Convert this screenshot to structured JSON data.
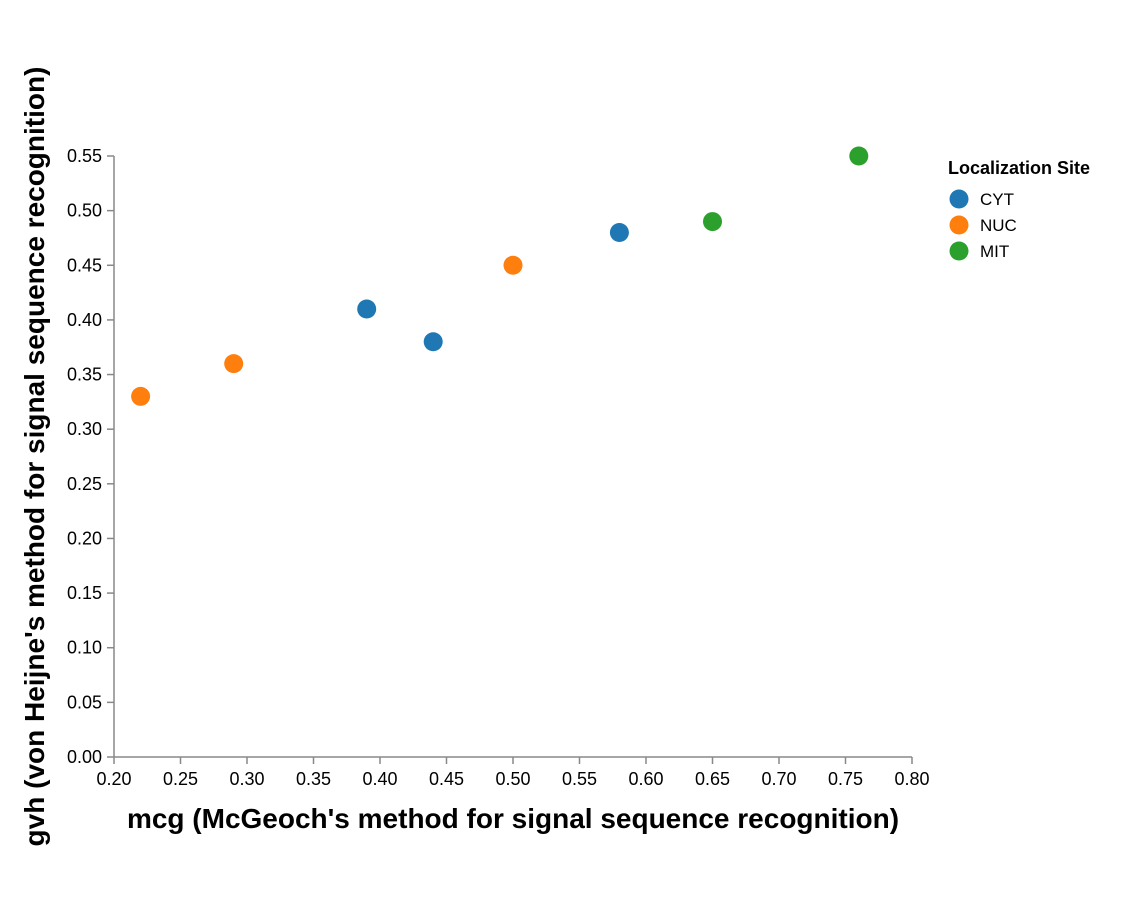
{
  "chart_data": {
    "type": "scatter",
    "xlabel": "mcg (McGeoch's method for signal sequence recognition)",
    "ylabel": "gvh (von Heijne's method for signal sequence recognition)",
    "xlim": [
      0.2,
      0.8
    ],
    "ylim": [
      0.0,
      0.55
    ],
    "x_ticks": [
      "0.20",
      "0.25",
      "0.30",
      "0.35",
      "0.40",
      "0.45",
      "0.50",
      "0.55",
      "0.60",
      "0.65",
      "0.70",
      "0.75",
      "0.80"
    ],
    "y_ticks": [
      "0.00",
      "0.05",
      "0.10",
      "0.15",
      "0.20",
      "0.25",
      "0.30",
      "0.35",
      "0.40",
      "0.45",
      "0.50",
      "0.55"
    ],
    "grid": false,
    "legend": {
      "title": "Localization Site",
      "placement": "top-right",
      "entries": [
        {
          "label": "CYT",
          "color": "#1f77b4"
        },
        {
          "label": "NUC",
          "color": "#ff7f0e"
        },
        {
          "label": "MIT",
          "color": "#2ca02c"
        }
      ]
    },
    "series": [
      {
        "name": "CYT",
        "color": "#1f77b4",
        "points": [
          [
            0.58,
            0.48
          ],
          [
            0.39,
            0.41
          ],
          [
            0.44,
            0.38
          ]
        ]
      },
      {
        "name": "NUC",
        "color": "#ff7f0e",
        "points": [
          [
            0.5,
            0.45
          ],
          [
            0.29,
            0.36
          ],
          [
            0.22,
            0.33
          ]
        ]
      },
      {
        "name": "MIT",
        "color": "#2ca02c",
        "points": [
          [
            0.76,
            0.55
          ],
          [
            0.65,
            0.49
          ]
        ]
      }
    ]
  }
}
